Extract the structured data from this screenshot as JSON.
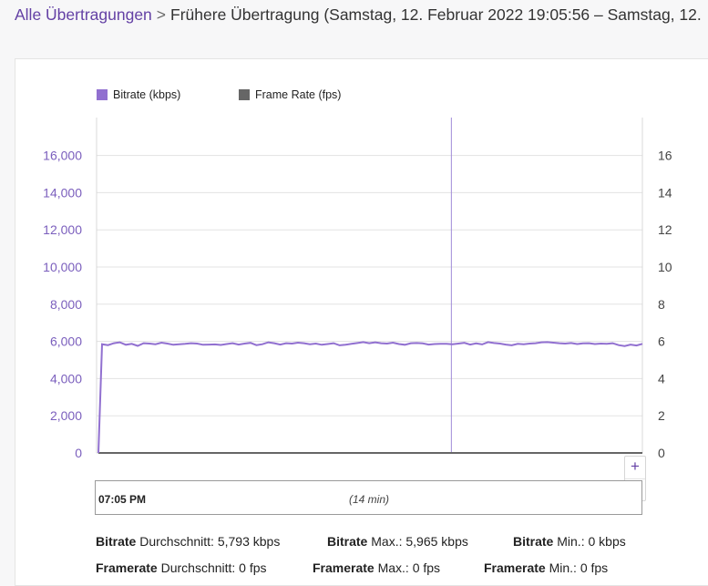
{
  "breadcrumb": {
    "link": "Alle Übertragungen",
    "separator": ">",
    "current": "Frühere Übertragung (Samstag, 12. Februar 2022 19:05:56 – Samstag, 12."
  },
  "legend": {
    "bitrate": {
      "label": "Bitrate (kbps)",
      "color": "#9170d0"
    },
    "framerate": {
      "label": "Frame Rate (fps)",
      "color": "#666666"
    }
  },
  "chart_data": {
    "type": "line",
    "left_axis": {
      "ticks": [
        0,
        2000,
        4000,
        6000,
        8000,
        10000,
        12000,
        14000,
        16000
      ],
      "tick_labels": [
        "0",
        "2,000",
        "4,000",
        "6,000",
        "8,000",
        "10,000",
        "12,000",
        "14,000",
        "16,000"
      ],
      "range": [
        0,
        18000
      ]
    },
    "right_axis": {
      "ticks": [
        0,
        2,
        4,
        6,
        8,
        10,
        12,
        14,
        16
      ],
      "tick_labels": [
        "0",
        "2",
        "4",
        "6",
        "8",
        "10",
        "12",
        "14",
        "16"
      ],
      "range": [
        0,
        18
      ]
    },
    "grid": true,
    "legend_position": "top-left",
    "series": [
      {
        "name": "Bitrate (kbps)",
        "axis": "left",
        "values": [
          0,
          5850,
          5800,
          5900,
          5950,
          5820,
          5870,
          5760,
          5900,
          5880,
          5850,
          5930,
          5880,
          5820,
          5850,
          5870,
          5900,
          5880,
          5820,
          5830,
          5840,
          5810,
          5860,
          5900,
          5830,
          5880,
          5920,
          5800,
          5850,
          5950,
          5900,
          5830,
          5900,
          5880,
          5930,
          5900,
          5850,
          5880,
          5820,
          5860,
          5900,
          5790,
          5820,
          5870,
          5910,
          5960,
          5900,
          5950,
          5900,
          5880,
          5930,
          5860,
          5820,
          5900,
          5910,
          5890,
          5830,
          5860,
          5870,
          5870,
          5850,
          5880,
          5920,
          5830,
          5890,
          5840,
          5960,
          5910,
          5880,
          5830,
          5790,
          5870,
          5850,
          5880,
          5900,
          5950,
          5960,
          5930,
          5900,
          5880,
          5910,
          5860,
          5890,
          5900,
          5860,
          5880,
          5870,
          5900,
          5800,
          5750,
          5830,
          5780,
          5870
        ]
      },
      {
        "name": "Frame Rate (fps)",
        "axis": "right",
        "values": [
          0,
          0,
          0,
          0,
          0,
          0,
          0,
          0,
          0,
          0,
          0,
          0,
          0,
          0,
          0,
          0,
          0,
          0,
          0,
          0,
          0,
          0,
          0,
          0,
          0,
          0,
          0,
          0,
          0,
          0,
          0,
          0,
          0,
          0,
          0,
          0,
          0,
          0,
          0,
          0,
          0,
          0,
          0,
          0,
          0,
          0,
          0,
          0,
          0,
          0,
          0,
          0,
          0,
          0,
          0,
          0,
          0,
          0,
          0,
          0,
          0,
          0,
          0,
          0,
          0,
          0,
          0,
          0,
          0,
          0,
          0,
          0,
          0,
          0,
          0,
          0,
          0,
          0,
          0,
          0,
          0,
          0,
          0,
          0,
          0,
          0,
          0,
          0,
          0,
          0,
          0,
          0,
          0
        ]
      }
    ],
    "cursor_fraction": 0.65
  },
  "zoom": {
    "in": "+",
    "out": "−"
  },
  "navigator": {
    "start": "07:05 PM",
    "duration": "(14 min)"
  },
  "stats": {
    "bitrate_avg": {
      "bold": "Bitrate",
      "text": " Durchschnitt: 5,793 kbps"
    },
    "bitrate_max": {
      "bold": "Bitrate",
      "text": " Max.: 5,965 kbps"
    },
    "bitrate_min": {
      "bold": "Bitrate",
      "text": " Min.: 0 kbps"
    },
    "framerate_avg": {
      "bold": "Framerate",
      "text": " Durchschnitt: 0 fps"
    },
    "framerate_max": {
      "bold": "Framerate",
      "text": " Max.: 0 fps"
    },
    "framerate_min": {
      "bold": "Framerate",
      "text": " Min.: 0 fps"
    }
  }
}
